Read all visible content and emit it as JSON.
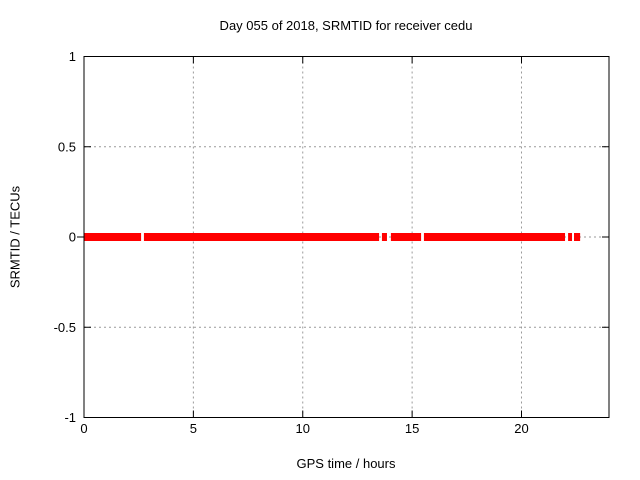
{
  "chart_data": {
    "type": "line",
    "title": "Day 055 of 2018, SRMTID for receiver cedu",
    "xlabel": "GPS time / hours",
    "ylabel": "SRMTID / TECUs",
    "xlim": [
      0,
      24
    ],
    "ylim": [
      -1,
      1
    ],
    "x_ticks": [
      0,
      5,
      10,
      15,
      20
    ],
    "y_ticks": [
      1,
      0.5,
      0,
      -0.5,
      -1
    ],
    "grid": true,
    "legend": "none",
    "background_color": "#ffffff",
    "grid_color": "#9a9a9a",
    "axis_color": "#000000",
    "series": [
      {
        "name": "SRMTID",
        "color": "#ff0000",
        "y_value": 0,
        "style": "dense red markers forming a thick band at y = 0",
        "segments_hours": [
          [
            0.0,
            2.61
          ],
          [
            2.74,
            13.49
          ],
          [
            13.62,
            13.85
          ],
          [
            14.03,
            15.41
          ],
          [
            15.54,
            21.99
          ],
          [
            22.13,
            22.31
          ],
          [
            22.4,
            22.68
          ]
        ]
      }
    ]
  }
}
